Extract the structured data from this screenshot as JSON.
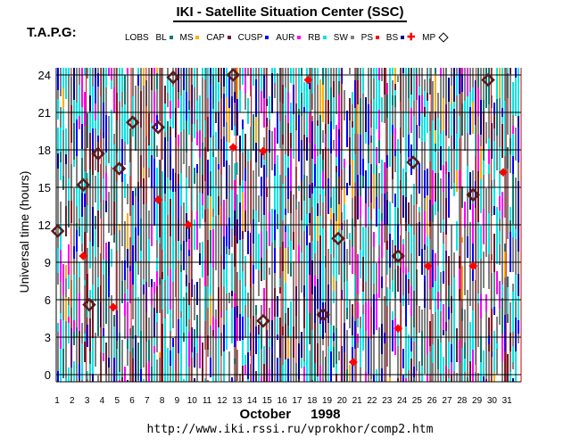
{
  "header": {
    "title": "IKI - Satellite Situation Center (SSC)",
    "org": "T.A.P.G:"
  },
  "legend": [
    {
      "label": "LOBS",
      "color": ""
    },
    {
      "label": "BL",
      "color": "#0a7a72"
    },
    {
      "label": "MS",
      "color": "#ffae00"
    },
    {
      "label": "CAP",
      "color": "#6a1e2e"
    },
    {
      "label": "CUSP",
      "color": "#0000ff"
    },
    {
      "label": "AUR",
      "color": "#ff00ff"
    },
    {
      "label": "RB",
      "color": "#00e5e5"
    },
    {
      "label": "SW",
      "color": "#808080"
    },
    {
      "label": "PS",
      "color": "#ff0000"
    },
    {
      "label": "BS",
      "color": "#00008b"
    },
    {
      "label": "MP",
      "color": "#000000"
    }
  ],
  "footer": {
    "month": "October",
    "year": "1998",
    "url": "http://www.iki.rssi.ru/vprokhor/comp2.htm"
  },
  "chart_data": {
    "type": "scatter",
    "title": "IKI - Satellite Situation Center (SSC)",
    "xlabel": "October 1998",
    "ylabel": "Universal time (hours)",
    "x_ticks": [
      "1",
      "2",
      "3",
      "4",
      "5",
      "6",
      "7",
      "8",
      "9",
      "10",
      "11",
      "12",
      "13",
      "14",
      "15",
      "16",
      "17",
      "18",
      "19",
      "20",
      "21",
      "22",
      "23",
      "24",
      "25",
      "26",
      "27",
      "28",
      "29",
      "30",
      "31"
    ],
    "y_ticks": [
      "0",
      "3",
      "6",
      "9",
      "12",
      "15",
      "18",
      "21",
      "24"
    ],
    "xlim": [
      1,
      32
    ],
    "ylim": [
      0,
      24
    ],
    "background_note": "Dense vertical colored bars per day show the region each satellite was in (LOBS/BL/MS/CAP/CUSP/AUR/RB/SW/BS)",
    "series": [
      {
        "name": "PS",
        "marker": "red-cross",
        "points": [
          {
            "day": 2.8,
            "ut": 9.5
          },
          {
            "day": 4.8,
            "ut": 5.4
          },
          {
            "day": 7.8,
            "ut": 14.0
          },
          {
            "day": 9.8,
            "ut": 12.0
          },
          {
            "day": 12.8,
            "ut": 18.2
          },
          {
            "day": 14.8,
            "ut": 17.9
          },
          {
            "day": 17.8,
            "ut": 23.6
          },
          {
            "day": 20.8,
            "ut": 1.0
          },
          {
            "day": 23.8,
            "ut": 3.7
          },
          {
            "day": 25.8,
            "ut": 8.7
          },
          {
            "day": 28.8,
            "ut": 8.7
          },
          {
            "day": 30.8,
            "ut": 16.2
          }
        ]
      },
      {
        "name": "MP",
        "marker": "diamond",
        "points": [
          {
            "day": 1.1,
            "ut": 11.5
          },
          {
            "day": 2.8,
            "ut": 15.2
          },
          {
            "day": 3.2,
            "ut": 5.6
          },
          {
            "day": 3.8,
            "ut": 17.7
          },
          {
            "day": 5.2,
            "ut": 16.5
          },
          {
            "day": 6.1,
            "ut": 20.2
          },
          {
            "day": 7.8,
            "ut": 19.8
          },
          {
            "day": 8.8,
            "ut": 23.8
          },
          {
            "day": 12.8,
            "ut": 24.0
          },
          {
            "day": 14.8,
            "ut": 4.3
          },
          {
            "day": 18.8,
            "ut": 4.8
          },
          {
            "day": 19.8,
            "ut": 10.9
          },
          {
            "day": 23.8,
            "ut": 9.5
          },
          {
            "day": 24.8,
            "ut": 17.0
          },
          {
            "day": 28.8,
            "ut": 14.4
          },
          {
            "day": 29.8,
            "ut": 23.6
          }
        ]
      }
    ]
  }
}
